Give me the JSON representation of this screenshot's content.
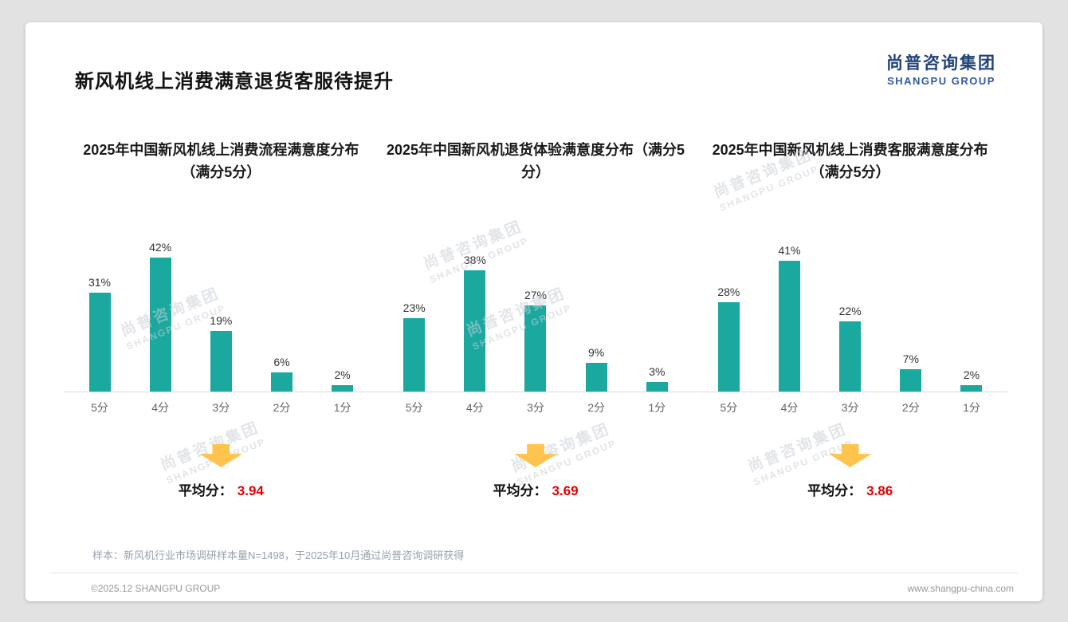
{
  "page": {
    "title": "新风机线上消费满意退货客服待提升",
    "logo": {
      "cn": "尚普咨询集团",
      "en": "SHANGPU GROUP"
    },
    "watermark_cn": "尚普咨询集团",
    "watermark_en": "SHANGPU GROUP",
    "footnote": "样本：新风机行业市场调研样本量N=1498，于2025年10月通过尚普咨询调研获得",
    "footer_left": "©2025.12 SHANGPU GROUP",
    "footer_right": "www.shangpu-china.com",
    "colors": {
      "bar": "#1AA89F",
      "arrow": "#FFC44D",
      "avg_value": "#E50000"
    }
  },
  "chart_data": [
    {
      "type": "bar",
      "title": "2025年中国新风机线上消费流程满意度分布（满分5分）",
      "categories": [
        "5分",
        "4分",
        "3分",
        "2分",
        "1分"
      ],
      "values": [
        31,
        42,
        19,
        6,
        2
      ],
      "value_suffix": "%",
      "xlabel": "",
      "ylabel": "",
      "ylim": [
        0,
        45
      ],
      "avg_label": "平均分：",
      "avg_value": "3.94"
    },
    {
      "type": "bar",
      "title": "2025年中国新风机退货体验满意度分布（满分5分）",
      "categories": [
        "5分",
        "4分",
        "3分",
        "2分",
        "1分"
      ],
      "values": [
        23,
        38,
        27,
        9,
        3
      ],
      "value_suffix": "%",
      "xlabel": "",
      "ylabel": "",
      "ylim": [
        0,
        45
      ],
      "avg_label": "平均分：",
      "avg_value": "3.69"
    },
    {
      "type": "bar",
      "title": "2025年中国新风机线上消费客服满意度分布（满分5分）",
      "categories": [
        "5分",
        "4分",
        "3分",
        "2分",
        "1分"
      ],
      "values": [
        28,
        41,
        22,
        7,
        2
      ],
      "value_suffix": "%",
      "xlabel": "",
      "ylabel": "",
      "ylim": [
        0,
        45
      ],
      "avg_label": "平均分：",
      "avg_value": "3.86"
    }
  ]
}
